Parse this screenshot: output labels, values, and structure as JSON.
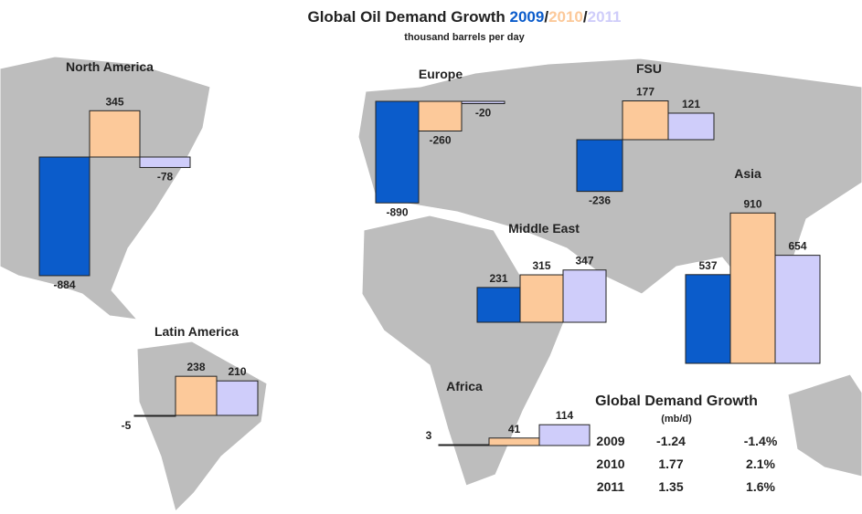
{
  "header": {
    "title": "Global Oil Demand Growth",
    "separator": "/",
    "subtitle": "thousand barrels per day"
  },
  "series": [
    {
      "name": "2009",
      "color": "#0b5ccb"
    },
    {
      "name": "2010",
      "color": "#fcc99a"
    },
    {
      "name": "2011",
      "color": "#cfcdfa"
    }
  ],
  "regions": [
    {
      "name": "North America",
      "values": [
        -884,
        345,
        -78
      ]
    },
    {
      "name": "Europe",
      "values": [
        -890,
        -260,
        -20
      ]
    },
    {
      "name": "FSU",
      "values": [
        -236,
        177,
        121
      ]
    },
    {
      "name": "Asia",
      "values": [
        537,
        910,
        654
      ]
    },
    {
      "name": "Middle East",
      "values": [
        231,
        315,
        347
      ]
    },
    {
      "name": "Latin America",
      "values": [
        -5,
        238,
        210
      ]
    },
    {
      "name": "Africa",
      "values": [
        3,
        41,
        114
      ]
    }
  ],
  "table": {
    "title": "Global Demand Growth",
    "unit": "(mb/d)",
    "rows": [
      [
        "2009",
        "-1.24",
        "-1.4%"
      ],
      [
        "2010",
        "1.77",
        "2.1%"
      ],
      [
        "2011",
        "1.35",
        "1.6%"
      ]
    ]
  }
}
